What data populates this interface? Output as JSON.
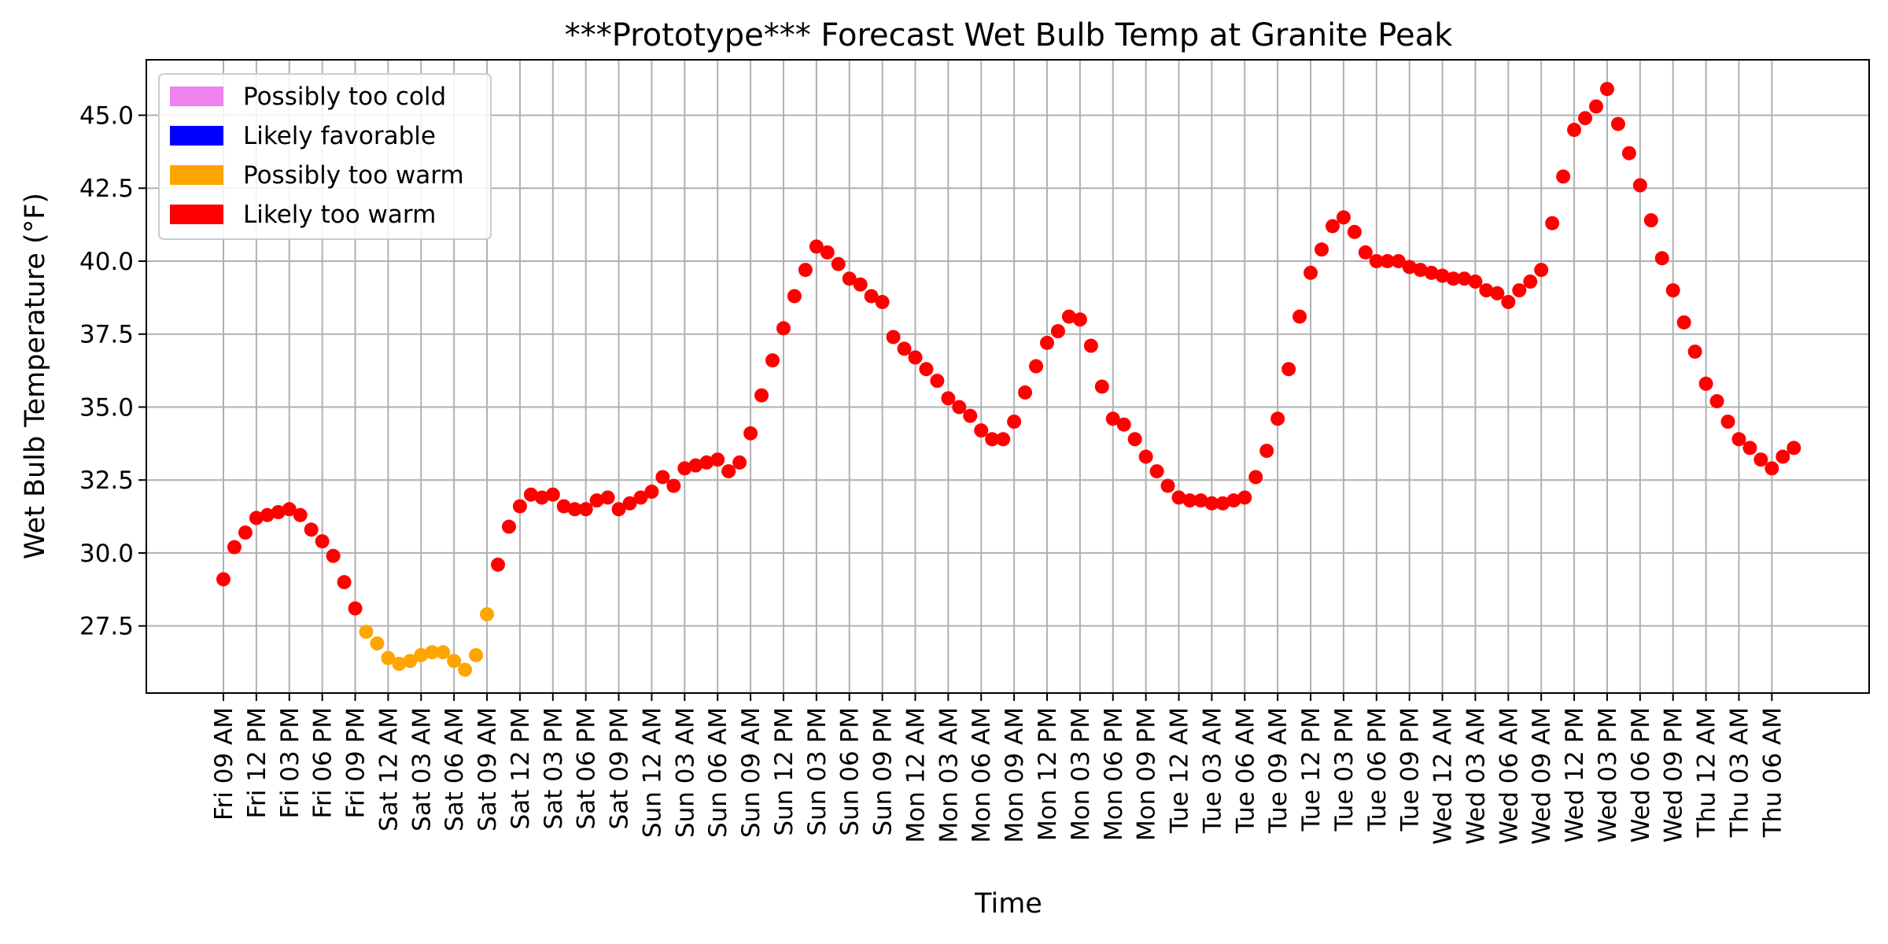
{
  "chart_data": {
    "type": "scatter",
    "title": "***Prototype*** Forecast Wet Bulb Temp at Granite Peak",
    "xlabel": "Time",
    "ylabel": "Wet Bulb Temperature (°F)",
    "ylim": [
      25.2,
      46.9
    ],
    "yticks": [
      27.5,
      30.0,
      32.5,
      35.0,
      37.5,
      40.0,
      42.5,
      45.0
    ],
    "x_start": "Fri 09 AM",
    "x_step_hours": 1,
    "xticks": [
      "Fri 09 AM",
      "Fri 12 PM",
      "Fri 03 PM",
      "Fri 06 PM",
      "Fri 09 PM",
      "Sat 12 AM",
      "Sat 03 AM",
      "Sat 06 AM",
      "Sat 09 AM",
      "Sat 12 PM",
      "Sat 03 PM",
      "Sat 06 PM",
      "Sat 09 PM",
      "Sun 12 AM",
      "Sun 03 AM",
      "Sun 06 AM",
      "Sun 09 AM",
      "Sun 12 PM",
      "Sun 03 PM",
      "Sun 06 PM",
      "Sun 09 PM",
      "Mon 12 AM",
      "Mon 03 AM",
      "Mon 06 AM",
      "Mon 09 AM",
      "Mon 12 PM",
      "Mon 03 PM",
      "Mon 06 PM",
      "Mon 09 PM",
      "Tue 12 AM",
      "Tue 03 AM",
      "Tue 06 AM",
      "Tue 09 AM",
      "Tue 12 PM",
      "Tue 03 PM",
      "Tue 06 PM",
      "Tue 09 PM",
      "Wed 12 AM",
      "Wed 03 AM",
      "Wed 06 AM",
      "Wed 09 AM",
      "Wed 12 PM",
      "Wed 03 PM",
      "Wed 06 PM",
      "Wed 09 PM",
      "Thu 12 AM",
      "Thu 03 AM",
      "Thu 06 AM"
    ],
    "xtick_step": 3,
    "grid": true,
    "legend_position": "top-left",
    "categories": [
      {
        "name": "Possibly too cold",
        "color": "#ee82ee"
      },
      {
        "name": "Likely favorable",
        "color": "#0000ff"
      },
      {
        "name": "Possibly too warm",
        "color": "#ffa500"
      },
      {
        "name": "Likely too warm",
        "color": "#ff0000"
      }
    ],
    "values": [
      29.1,
      30.2,
      30.7,
      31.2,
      31.3,
      31.4,
      31.5,
      31.3,
      30.8,
      30.4,
      29.9,
      29.0,
      28.1,
      27.3,
      26.9,
      26.4,
      26.2,
      26.3,
      26.5,
      26.6,
      26.6,
      26.3,
      26.0,
      26.5,
      27.9,
      29.6,
      30.9,
      31.6,
      32.0,
      31.9,
      32.0,
      31.6,
      31.5,
      31.5,
      31.8,
      31.9,
      31.5,
      31.7,
      31.9,
      32.1,
      32.6,
      32.3,
      32.9,
      33.0,
      33.1,
      33.2,
      32.8,
      33.1,
      34.1,
      35.4,
      36.6,
      37.7,
      38.8,
      39.7,
      40.5,
      40.3,
      39.9,
      39.4,
      39.2,
      38.8,
      38.6,
      37.4,
      37.0,
      36.7,
      36.3,
      35.9,
      35.3,
      35.0,
      34.7,
      34.2,
      33.9,
      33.9,
      34.5,
      35.5,
      36.4,
      37.2,
      37.6,
      38.1,
      38.0,
      37.1,
      35.7,
      34.6,
      34.4,
      33.9,
      33.3,
      32.8,
      32.3,
      31.9,
      31.8,
      31.8,
      31.7,
      31.7,
      31.8,
      31.9,
      32.6,
      33.5,
      34.6,
      36.3,
      38.1,
      39.6,
      40.4,
      41.2,
      41.5,
      41.0,
      40.3,
      40.0,
      40.0,
      40.0,
      39.8,
      39.7,
      39.6,
      39.5,
      39.4,
      39.4,
      39.3,
      39.0,
      38.9,
      38.6,
      39.0,
      39.3,
      39.7,
      41.3,
      42.9,
      44.5,
      44.9,
      45.3,
      45.9,
      44.7,
      43.7,
      42.6,
      41.4,
      40.1,
      39.0,
      37.9,
      36.9,
      35.8,
      35.2,
      34.5,
      33.9,
      33.6,
      33.2,
      32.9,
      33.3,
      33.6
    ],
    "point_category": [
      3,
      3,
      3,
      3,
      3,
      3,
      3,
      3,
      3,
      3,
      3,
      3,
      3,
      2,
      2,
      2,
      2,
      2,
      2,
      2,
      2,
      2,
      2,
      2,
      2,
      3,
      3,
      3,
      3,
      3,
      3,
      3,
      3,
      3,
      3,
      3,
      3,
      3,
      3,
      3,
      3,
      3,
      3,
      3,
      3,
      3,
      3,
      3,
      3,
      3,
      3,
      3,
      3,
      3,
      3,
      3,
      3,
      3,
      3,
      3,
      3,
      3,
      3,
      3,
      3,
      3,
      3,
      3,
      3,
      3,
      3,
      3,
      3,
      3,
      3,
      3,
      3,
      3,
      3,
      3,
      3,
      3,
      3,
      3,
      3,
      3,
      3,
      3,
      3,
      3,
      3,
      3,
      3,
      3,
      3,
      3,
      3,
      3,
      3,
      3,
      3,
      3,
      3,
      3,
      3,
      3,
      3,
      3,
      3,
      3,
      3,
      3,
      3,
      3,
      3,
      3,
      3,
      3,
      3,
      3,
      3,
      3,
      3,
      3,
      3,
      3,
      3,
      3,
      3,
      3,
      3,
      3,
      3,
      3,
      3,
      3,
      3,
      3,
      3,
      3,
      3,
      3,
      3,
      3,
      3
    ]
  }
}
